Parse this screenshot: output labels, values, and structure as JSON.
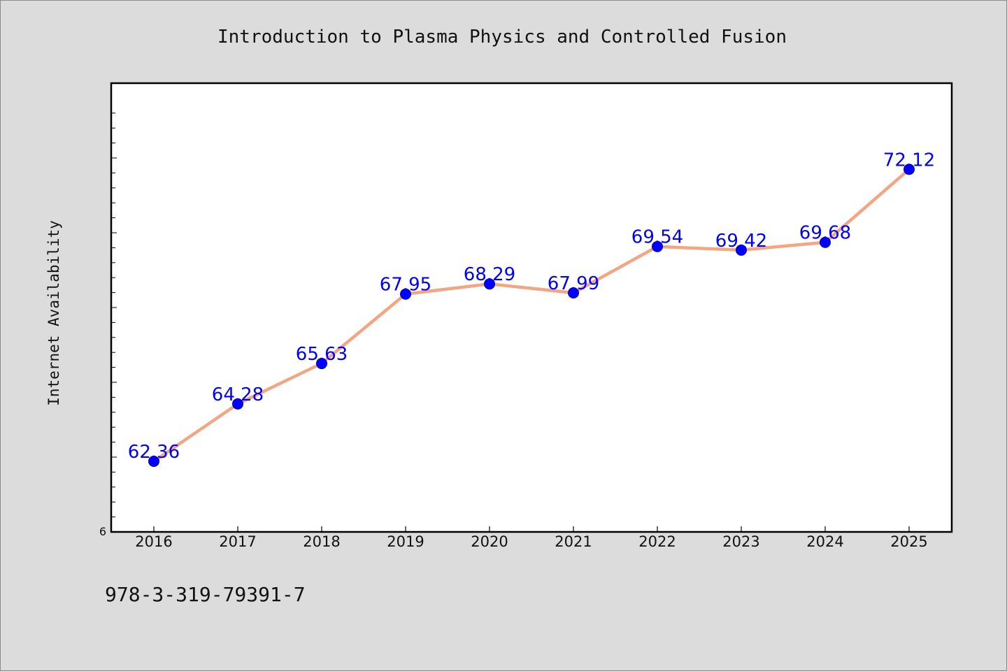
{
  "chart_data": {
    "type": "line",
    "title": "Introduction to Plasma Physics and Controlled Fusion",
    "ylabel": "Internet Availability",
    "xlabel": "",
    "categories": [
      "2016",
      "2017",
      "2018",
      "2019",
      "2020",
      "2021",
      "2022",
      "2023",
      "2024",
      "2025"
    ],
    "series": [
      {
        "values": [
          62.36,
          64.28,
          65.63,
          67.95,
          68.29,
          67.99,
          69.54,
          69.42,
          69.68,
          72.12
        ]
      }
    ],
    "data_labels": [
      "62.36",
      "64.28",
      "65.63",
      "67.95",
      "68.29",
      "67.99",
      "69.54",
      "69.42",
      "69.68",
      "72.12"
    ],
    "ylim": [
      60.0,
      75.0
    ],
    "y_tick_label": "6",
    "grid": false,
    "legend": "none",
    "colors": {
      "line": "#f4a582",
      "marker": "#0000ff",
      "marker_edge": "#0000aa",
      "data_label": "#0000ff",
      "plot_background": "#ffffff",
      "figure_background": "#dcdcdc"
    }
  },
  "footer": {
    "code": "978-3-319-79391-7"
  }
}
